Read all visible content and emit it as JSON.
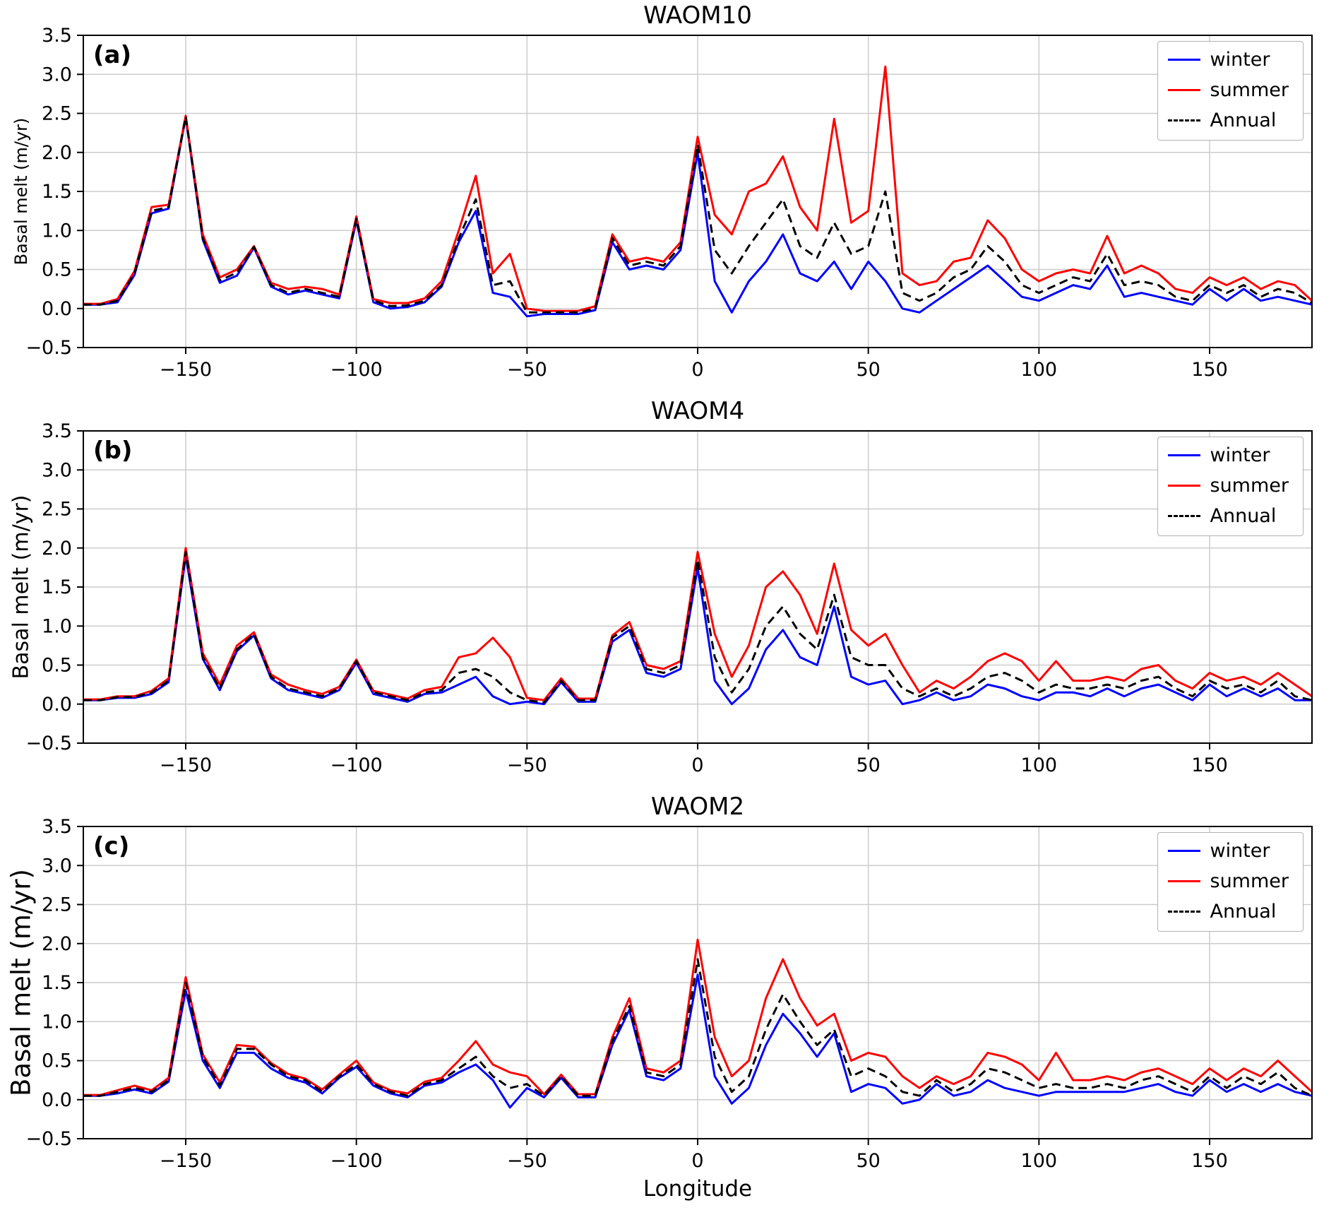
{
  "chart_data": [
    {
      "type": "line",
      "title": "WAOM10",
      "panel_label": "(a)",
      "xlabel": "",
      "ylabel": "Basal melt (m/yr)",
      "xlim": [
        -180,
        180
      ],
      "ylim": [
        -0.5,
        3.5
      ],
      "xticks": [
        -150,
        -100,
        -50,
        0,
        50,
        100,
        150
      ],
      "yticks": [
        -0.5,
        0.0,
        0.5,
        1.0,
        1.5,
        2.0,
        2.5,
        3.0,
        3.5
      ],
      "grid": true,
      "legend_position": "upper right",
      "x": [
        -180,
        -175,
        -170,
        -165,
        -160,
        -155,
        -150,
        -145,
        -140,
        -135,
        -130,
        -125,
        -120,
        -115,
        -110,
        -105,
        -100,
        -95,
        -90,
        -85,
        -80,
        -75,
        -70,
        -65,
        -60,
        -55,
        -50,
        -45,
        -40,
        -35,
        -30,
        -25,
        -20,
        -15,
        -10,
        -5,
        0,
        5,
        10,
        15,
        20,
        25,
        30,
        35,
        40,
        45,
        50,
        55,
        60,
        65,
        70,
        75,
        80,
        85,
        90,
        95,
        100,
        105,
        110,
        115,
        120,
        125,
        130,
        135,
        140,
        145,
        150,
        155,
        160,
        165,
        170,
        175,
        180
      ],
      "series": [
        {
          "name": "winter",
          "color": "#0000ff",
          "style": "solid",
          "values": [
            0.05,
            0.05,
            0.08,
            0.43,
            1.22,
            1.28,
            2.45,
            0.88,
            0.33,
            0.42,
            0.78,
            0.28,
            0.18,
            0.23,
            0.18,
            0.13,
            1.13,
            0.08,
            0.0,
            0.02,
            0.08,
            0.28,
            0.85,
            1.25,
            0.2,
            0.15,
            -0.1,
            -0.07,
            -0.07,
            -0.07,
            -0.02,
            0.85,
            0.5,
            0.55,
            0.5,
            0.75,
            2.0,
            0.35,
            -0.05,
            0.35,
            0.6,
            0.95,
            0.45,
            0.35,
            0.6,
            0.25,
            0.6,
            0.35,
            0.0,
            -0.05,
            0.1,
            0.25,
            0.4,
            0.55,
            0.35,
            0.15,
            0.1,
            0.2,
            0.3,
            0.25,
            0.55,
            0.15,
            0.2,
            0.15,
            0.1,
            0.05,
            0.25,
            0.1,
            0.25,
            0.1,
            0.15,
            0.1,
            0.05
          ]
        },
        {
          "name": "summer",
          "color": "#ff0000",
          "style": "solid",
          "values": [
            0.06,
            0.06,
            0.12,
            0.48,
            1.3,
            1.33,
            2.47,
            0.95,
            0.4,
            0.5,
            0.8,
            0.33,
            0.25,
            0.28,
            0.25,
            0.18,
            1.18,
            0.12,
            0.07,
            0.07,
            0.13,
            0.35,
            1.0,
            1.7,
            0.45,
            0.7,
            0.0,
            -0.03,
            -0.03,
            -0.03,
            0.03,
            0.95,
            0.6,
            0.65,
            0.6,
            0.85,
            2.2,
            1.2,
            0.95,
            1.5,
            1.6,
            1.95,
            1.3,
            1.0,
            2.43,
            1.1,
            1.25,
            3.1,
            0.45,
            0.3,
            0.35,
            0.6,
            0.65,
            1.13,
            0.9,
            0.5,
            0.35,
            0.45,
            0.5,
            0.45,
            0.93,
            0.45,
            0.55,
            0.45,
            0.25,
            0.2,
            0.4,
            0.3,
            0.4,
            0.25,
            0.35,
            0.3,
            0.1
          ]
        },
        {
          "name": "Annual",
          "color": "#000000",
          "style": "dashed",
          "values": [
            0.05,
            0.05,
            0.1,
            0.45,
            1.25,
            1.3,
            2.46,
            0.9,
            0.36,
            0.46,
            0.79,
            0.3,
            0.2,
            0.25,
            0.2,
            0.15,
            1.15,
            0.1,
            0.03,
            0.04,
            0.1,
            0.3,
            0.9,
            1.4,
            0.3,
            0.35,
            -0.05,
            -0.05,
            -0.05,
            -0.05,
            0.0,
            0.9,
            0.55,
            0.6,
            0.55,
            0.8,
            2.1,
            0.75,
            0.45,
            0.8,
            1.1,
            1.4,
            0.8,
            0.65,
            1.1,
            0.7,
            0.8,
            1.5,
            0.2,
            0.1,
            0.2,
            0.4,
            0.5,
            0.8,
            0.6,
            0.3,
            0.2,
            0.3,
            0.4,
            0.35,
            0.7,
            0.3,
            0.35,
            0.3,
            0.15,
            0.1,
            0.3,
            0.2,
            0.3,
            0.15,
            0.25,
            0.2,
            0.07
          ]
        }
      ]
    },
    {
      "type": "line",
      "title": "WAOM4",
      "panel_label": "(b)",
      "xlabel": "",
      "ylabel": "Basal melt (m/yr)",
      "xlim": [
        -180,
        180
      ],
      "ylim": [
        -0.5,
        3.5
      ],
      "xticks": [
        -150,
        -100,
        -50,
        0,
        50,
        100,
        150
      ],
      "yticks": [
        -0.5,
        0.0,
        0.5,
        1.0,
        1.5,
        2.0,
        2.5,
        3.0,
        3.5
      ],
      "grid": true,
      "legend_position": "upper right",
      "x": [
        -180,
        -175,
        -170,
        -165,
        -160,
        -155,
        -150,
        -145,
        -140,
        -135,
        -130,
        -125,
        -120,
        -115,
        -110,
        -105,
        -100,
        -95,
        -90,
        -85,
        -80,
        -75,
        -70,
        -65,
        -60,
        -55,
        -50,
        -45,
        -40,
        -35,
        -30,
        -25,
        -20,
        -15,
        -10,
        -5,
        0,
        5,
        10,
        15,
        20,
        25,
        30,
        35,
        40,
        45,
        50,
        55,
        60,
        65,
        70,
        75,
        80,
        85,
        90,
        95,
        100,
        105,
        110,
        115,
        120,
        125,
        130,
        135,
        140,
        145,
        150,
        155,
        160,
        165,
        170,
        175,
        180
      ],
      "series": [
        {
          "name": "winter",
          "color": "#0000ff",
          "style": "solid",
          "values": [
            0.05,
            0.05,
            0.08,
            0.08,
            0.13,
            0.28,
            1.9,
            0.58,
            0.18,
            0.68,
            0.88,
            0.33,
            0.18,
            0.13,
            0.08,
            0.18,
            0.53,
            0.13,
            0.08,
            0.03,
            0.13,
            0.15,
            0.25,
            0.35,
            0.1,
            0.0,
            0.03,
            0.0,
            0.28,
            0.03,
            0.03,
            0.8,
            0.95,
            0.4,
            0.35,
            0.45,
            1.75,
            0.3,
            0.0,
            0.2,
            0.7,
            0.95,
            0.6,
            0.5,
            1.25,
            0.35,
            0.25,
            0.3,
            0.0,
            0.05,
            0.15,
            0.05,
            0.1,
            0.25,
            0.2,
            0.1,
            0.05,
            0.15,
            0.15,
            0.1,
            0.2,
            0.1,
            0.2,
            0.25,
            0.15,
            0.05,
            0.25,
            0.1,
            0.2,
            0.1,
            0.2,
            0.05,
            0.05
          ]
        },
        {
          "name": "summer",
          "color": "#ff0000",
          "style": "solid",
          "values": [
            0.06,
            0.06,
            0.1,
            0.1,
            0.17,
            0.33,
            2.0,
            0.65,
            0.25,
            0.75,
            0.92,
            0.38,
            0.25,
            0.18,
            0.13,
            0.22,
            0.57,
            0.17,
            0.12,
            0.07,
            0.18,
            0.22,
            0.6,
            0.65,
            0.85,
            0.6,
            0.08,
            0.05,
            0.33,
            0.07,
            0.07,
            0.88,
            1.05,
            0.5,
            0.45,
            0.55,
            1.95,
            0.9,
            0.35,
            0.75,
            1.5,
            1.7,
            1.4,
            0.9,
            1.8,
            0.95,
            0.75,
            0.9,
            0.5,
            0.15,
            0.3,
            0.2,
            0.35,
            0.55,
            0.65,
            0.55,
            0.3,
            0.55,
            0.3,
            0.3,
            0.35,
            0.3,
            0.45,
            0.5,
            0.3,
            0.2,
            0.4,
            0.3,
            0.35,
            0.25,
            0.4,
            0.25,
            0.1
          ]
        },
        {
          "name": "Annual",
          "color": "#000000",
          "style": "dashed",
          "values": [
            0.05,
            0.05,
            0.09,
            0.09,
            0.15,
            0.3,
            1.95,
            0.6,
            0.2,
            0.7,
            0.9,
            0.35,
            0.2,
            0.15,
            0.1,
            0.2,
            0.55,
            0.15,
            0.1,
            0.05,
            0.15,
            0.18,
            0.4,
            0.45,
            0.35,
            0.15,
            0.05,
            0.02,
            0.3,
            0.05,
            0.05,
            0.85,
            1.0,
            0.45,
            0.4,
            0.5,
            1.85,
            0.6,
            0.15,
            0.45,
            1.0,
            1.25,
            0.9,
            0.7,
            1.4,
            0.6,
            0.5,
            0.5,
            0.2,
            0.1,
            0.2,
            0.1,
            0.2,
            0.35,
            0.4,
            0.3,
            0.15,
            0.25,
            0.2,
            0.2,
            0.25,
            0.2,
            0.3,
            0.35,
            0.2,
            0.1,
            0.3,
            0.2,
            0.25,
            0.15,
            0.3,
            0.1,
            0.05
          ]
        }
      ]
    },
    {
      "type": "line",
      "title": "WAOM2",
      "panel_label": "(c)",
      "xlabel": "Longitude",
      "ylabel": "Basal melt (m/yr)",
      "xlim": [
        -180,
        180
      ],
      "ylim": [
        -0.5,
        3.5
      ],
      "xticks": [
        -150,
        -100,
        -50,
        0,
        50,
        100,
        150
      ],
      "yticks": [
        -0.5,
        0.0,
        0.5,
        1.0,
        1.5,
        2.0,
        2.5,
        3.0,
        3.5
      ],
      "grid": true,
      "legend_position": "upper right",
      "x": [
        -180,
        -175,
        -170,
        -165,
        -160,
        -155,
        -150,
        -145,
        -140,
        -135,
        -130,
        -125,
        -120,
        -115,
        -110,
        -105,
        -100,
        -95,
        -90,
        -85,
        -80,
        -75,
        -70,
        -65,
        -60,
        -55,
        -50,
        -45,
        -40,
        -35,
        -30,
        -25,
        -20,
        -15,
        -10,
        -5,
        0,
        5,
        10,
        15,
        20,
        25,
        30,
        35,
        40,
        45,
        50,
        55,
        60,
        65,
        70,
        75,
        80,
        85,
        90,
        95,
        100,
        105,
        110,
        115,
        120,
        125,
        130,
        135,
        140,
        145,
        150,
        155,
        160,
        165,
        170,
        175,
        180
      ],
      "series": [
        {
          "name": "winter",
          "color": "#0000ff",
          "style": "solid",
          "values": [
            0.05,
            0.05,
            0.08,
            0.13,
            0.08,
            0.23,
            1.4,
            0.5,
            0.15,
            0.6,
            0.6,
            0.4,
            0.28,
            0.22,
            0.08,
            0.28,
            0.42,
            0.18,
            0.08,
            0.03,
            0.18,
            0.22,
            0.35,
            0.45,
            0.25,
            -0.1,
            0.15,
            0.03,
            0.28,
            0.03,
            0.03,
            0.7,
            1.15,
            0.3,
            0.25,
            0.4,
            1.6,
            0.3,
            -0.05,
            0.15,
            0.7,
            1.1,
            0.85,
            0.55,
            0.85,
            0.1,
            0.2,
            0.15,
            -0.05,
            0.0,
            0.2,
            0.05,
            0.1,
            0.25,
            0.15,
            0.1,
            0.05,
            0.1,
            0.1,
            0.1,
            0.1,
            0.1,
            0.15,
            0.2,
            0.1,
            0.05,
            0.25,
            0.1,
            0.2,
            0.1,
            0.2,
            0.1,
            0.05
          ]
        },
        {
          "name": "summer",
          "color": "#ff0000",
          "style": "solid",
          "values": [
            0.06,
            0.06,
            0.12,
            0.18,
            0.12,
            0.28,
            1.57,
            0.58,
            0.22,
            0.7,
            0.68,
            0.47,
            0.33,
            0.27,
            0.13,
            0.32,
            0.5,
            0.22,
            0.12,
            0.08,
            0.23,
            0.28,
            0.5,
            0.75,
            0.45,
            0.35,
            0.3,
            0.07,
            0.32,
            0.07,
            0.07,
            0.8,
            1.3,
            0.4,
            0.35,
            0.5,
            2.05,
            0.8,
            0.3,
            0.5,
            1.3,
            1.8,
            1.3,
            0.95,
            1.1,
            0.5,
            0.6,
            0.55,
            0.3,
            0.15,
            0.3,
            0.2,
            0.3,
            0.6,
            0.55,
            0.45,
            0.25,
            0.6,
            0.25,
            0.25,
            0.3,
            0.25,
            0.35,
            0.4,
            0.3,
            0.2,
            0.4,
            0.25,
            0.4,
            0.3,
            0.5,
            0.3,
            0.1
          ]
        },
        {
          "name": "Annual",
          "color": "#000000",
          "style": "dashed",
          "values": [
            0.05,
            0.05,
            0.1,
            0.15,
            0.1,
            0.25,
            1.5,
            0.55,
            0.18,
            0.65,
            0.65,
            0.45,
            0.3,
            0.25,
            0.1,
            0.3,
            0.45,
            0.2,
            0.1,
            0.05,
            0.2,
            0.25,
            0.4,
            0.55,
            0.3,
            0.15,
            0.2,
            0.05,
            0.3,
            0.05,
            0.05,
            0.75,
            1.2,
            0.35,
            0.3,
            0.45,
            1.8,
            0.55,
            0.1,
            0.3,
            0.9,
            1.35,
            1.0,
            0.7,
            0.9,
            0.3,
            0.4,
            0.3,
            0.1,
            0.05,
            0.25,
            0.1,
            0.2,
            0.4,
            0.35,
            0.25,
            0.15,
            0.2,
            0.15,
            0.15,
            0.2,
            0.15,
            0.25,
            0.3,
            0.2,
            0.1,
            0.3,
            0.15,
            0.3,
            0.2,
            0.35,
            0.15,
            0.05
          ]
        }
      ]
    }
  ]
}
